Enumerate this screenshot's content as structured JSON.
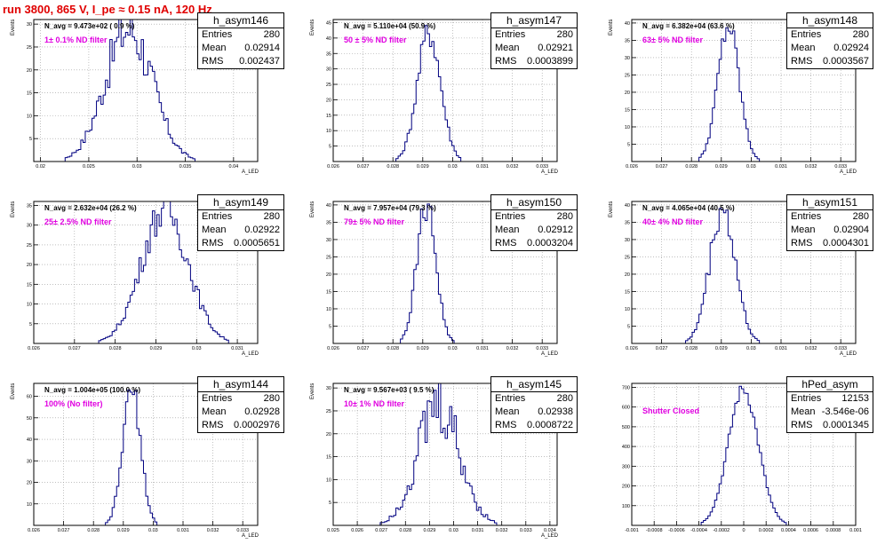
{
  "run_title": "run 3800,   865 V, I_pe ≈ 0.15 nA, 120 Hz",
  "colors": {
    "hist": "#000080",
    "filter_text": "#e000e0",
    "title_text": "#e00000",
    "grid": "#999999"
  },
  "panels": [
    {
      "name": "h_asym146",
      "entries": "280",
      "mean": "0.02914",
      "rms": "0.002437",
      "navg": "N_avg = 9.473e+02 ( 0.9 %)",
      "filter": "1± 0.1% ND filter",
      "ylabel": "Events",
      "xlabel": "A_LED"
    },
    {
      "name": "h_asym147",
      "entries": "280",
      "mean": "0.02921",
      "rms": "0.0003899",
      "navg": "N_avg = 5.110e+04 (50.9 %)",
      "filter": "50 ± 5% ND filter",
      "ylabel": "Events",
      "xlabel": "A_LED"
    },
    {
      "name": "h_asym148",
      "entries": "280",
      "mean": "0.02924",
      "rms": "0.0003567",
      "navg": "N_avg = 6.382e+04 (63.6 %)",
      "filter": "63± 5% ND filter",
      "ylabel": "Events",
      "xlabel": "A_LED"
    },
    {
      "name": "h_asym149",
      "entries": "280",
      "mean": "0.02922",
      "rms": "0.0005651",
      "navg": "N_avg = 2.632e+04 (26.2 %)",
      "filter": "25± 2.5% ND filter",
      "ylabel": "Events",
      "xlabel": "A_LED"
    },
    {
      "name": "h_asym150",
      "entries": "280",
      "mean": "0.02912",
      "rms": "0.0003204",
      "navg": "N_avg = 7.957e+04 (79.3 %)",
      "filter": "79± 5% ND filter",
      "ylabel": "Events",
      "xlabel": "A_LED"
    },
    {
      "name": "h_asym151",
      "entries": "280",
      "mean": "0.02904",
      "rms": "0.0004301",
      "navg": "N_avg = 4.065e+04 (40.5 %)",
      "filter": "40± 4% ND filter",
      "ylabel": "Events",
      "xlabel": "A_LED"
    },
    {
      "name": "h_asym144",
      "entries": "280",
      "mean": "0.02928",
      "rms": "0.0002976",
      "navg": "N_avg = 1.004e+05 (100.0 %)",
      "filter": "100% (No filter)",
      "ylabel": "Events",
      "xlabel": "A_LED"
    },
    {
      "name": "h_asym145",
      "entries": "280",
      "mean": "0.02938",
      "rms": "0.0008722",
      "navg": "N_avg = 9.567e+03 ( 9.5 %)",
      "filter": "10± 1% ND filter",
      "ylabel": "Events",
      "xlabel": "A_LED"
    },
    {
      "name": "hPed_asym",
      "entries": "12153",
      "mean": "-3.546e-06",
      "rms": "0.0001345",
      "navg": "",
      "filter": "Shutter Closed",
      "ylabel": "",
      "xlabel": ""
    }
  ],
  "chart_data": [
    {
      "type": "histogram",
      "title": "h_asym146",
      "xlim": [
        0.0193,
        0.0425
      ],
      "ylim": [
        0,
        31
      ],
      "xticks": [
        0.02,
        0.025,
        0.03,
        0.035,
        0.04
      ],
      "xtick_labels": [
        "0.02",
        "0.025",
        "0.03",
        "0.035",
        "0.04"
      ],
      "yticks": [
        5,
        10,
        15,
        20,
        25,
        30
      ],
      "mean": 0.02914,
      "sigma": 0.00244,
      "peak": 29,
      "jitter": 0.22
    },
    {
      "type": "histogram",
      "title": "h_asym147",
      "xlim": [
        0.026,
        0.0335
      ],
      "ylim": [
        0,
        46
      ],
      "xticks": [
        0.026,
        0.027,
        0.028,
        0.029,
        0.03,
        0.031,
        0.032,
        0.033
      ],
      "xtick_labels": [
        "0.026",
        "0.027",
        "0.028",
        "0.029",
        "0.03",
        "0.031",
        "0.032",
        "0.033"
      ],
      "yticks": [
        5,
        10,
        15,
        20,
        25,
        30,
        35,
        40,
        45
      ],
      "mean": 0.02921,
      "sigma": 0.00039,
      "peak": 42,
      "jitter": 0.12
    },
    {
      "type": "histogram",
      "title": "h_asym148",
      "xlim": [
        0.026,
        0.0335
      ],
      "ylim": [
        0,
        41
      ],
      "xticks": [
        0.026,
        0.027,
        0.028,
        0.029,
        0.03,
        0.031,
        0.032,
        0.033
      ],
      "xtick_labels": [
        "0.026",
        "0.027",
        "0.028",
        "0.029",
        "0.03",
        "0.031",
        "0.032",
        "0.033"
      ],
      "yticks": [
        5,
        10,
        15,
        20,
        25,
        30,
        35,
        40
      ],
      "mean": 0.02924,
      "sigma": 0.00036,
      "peak": 39,
      "jitter": 0.1
    },
    {
      "type": "histogram",
      "title": "h_asym149",
      "xlim": [
        0.026,
        0.0315
      ],
      "ylim": [
        0,
        36
      ],
      "xticks": [
        0.026,
        0.027,
        0.028,
        0.029,
        0.03,
        0.031
      ],
      "xtick_labels": [
        "0.026",
        "0.027",
        "0.028",
        "0.029",
        "0.03",
        "0.031"
      ],
      "yticks": [
        5,
        10,
        15,
        20,
        25,
        30,
        35
      ],
      "mean": 0.02922,
      "sigma": 0.00057,
      "peak": 34,
      "jitter": 0.15
    },
    {
      "type": "histogram",
      "title": "h_asym150",
      "xlim": [
        0.026,
        0.0335
      ],
      "ylim": [
        0,
        41
      ],
      "xticks": [
        0.026,
        0.027,
        0.028,
        0.029,
        0.03,
        0.031,
        0.032,
        0.033
      ],
      "xtick_labels": [
        "0.026",
        "0.027",
        "0.028",
        "0.029",
        "0.03",
        "0.031",
        "0.032",
        "0.033"
      ],
      "yticks": [
        5,
        10,
        15,
        20,
        25,
        30,
        35,
        40
      ],
      "mean": 0.02912,
      "sigma": 0.00032,
      "peak": 40,
      "jitter": 0.12
    },
    {
      "type": "histogram",
      "title": "h_asym151",
      "xlim": [
        0.026,
        0.0335
      ],
      "ylim": [
        0,
        41
      ],
      "xticks": [
        0.026,
        0.027,
        0.028,
        0.029,
        0.03,
        0.031,
        0.032,
        0.033
      ],
      "xtick_labels": [
        "0.026",
        "0.027",
        "0.028",
        "0.029",
        "0.03",
        "0.031",
        "0.032",
        "0.033"
      ],
      "yticks": [
        5,
        10,
        15,
        20,
        25,
        30,
        35,
        40
      ],
      "mean": 0.02904,
      "sigma": 0.00043,
      "peak": 39,
      "jitter": 0.13
    },
    {
      "type": "histogram",
      "title": "h_asym144",
      "xlim": [
        0.026,
        0.0335
      ],
      "ylim": [
        0,
        66
      ],
      "xticks": [
        0.026,
        0.027,
        0.028,
        0.029,
        0.03,
        0.031,
        0.032,
        0.033
      ],
      "xtick_labels": [
        "0.026",
        "0.027",
        "0.028",
        "0.029",
        "0.03",
        "0.031",
        "0.032",
        "0.033"
      ],
      "yticks": [
        10,
        20,
        30,
        40,
        50,
        60
      ],
      "mean": 0.02928,
      "sigma": 0.0003,
      "peak": 63,
      "jitter": 0.1
    },
    {
      "type": "histogram",
      "title": "h_asym145",
      "xlim": [
        0.025,
        0.0343
      ],
      "ylim": [
        0,
        31
      ],
      "xticks": [
        0.025,
        0.026,
        0.027,
        0.028,
        0.029,
        0.03,
        0.031,
        0.032,
        0.033,
        0.034
      ],
      "xtick_labels": [
        "0.025",
        "0.026",
        "0.027",
        "0.028",
        "0.029",
        "0.03",
        "0.031",
        "0.032",
        "0.033",
        "0.034"
      ],
      "yticks": [
        5,
        10,
        15,
        20,
        25,
        30
      ],
      "mean": 0.02938,
      "sigma": 0.00087,
      "peak": 26,
      "jitter": 0.3
    },
    {
      "type": "histogram",
      "title": "hPed_asym",
      "xlim": [
        -0.001,
        0.001
      ],
      "ylim": [
        0,
        720
      ],
      "xticks": [
        -0.001,
        -0.0008,
        -0.0006,
        -0.0004,
        -0.0002,
        0,
        0.0002,
        0.0004,
        0.0006,
        0.0008,
        0.001
      ],
      "xtick_labels": [
        "-0.001",
        "-0.0008",
        "-0.0006",
        "-0.0004",
        "-0.0002",
        "0",
        "0.0002",
        "0.0004",
        "0.0006",
        "0.0008",
        "0.001"
      ],
      "yticks": [
        100,
        200,
        300,
        400,
        500,
        600,
        700
      ],
      "mean": -3.5e-06,
      "sigma": 0.000134,
      "peak": 690,
      "jitter": 0.05
    }
  ]
}
